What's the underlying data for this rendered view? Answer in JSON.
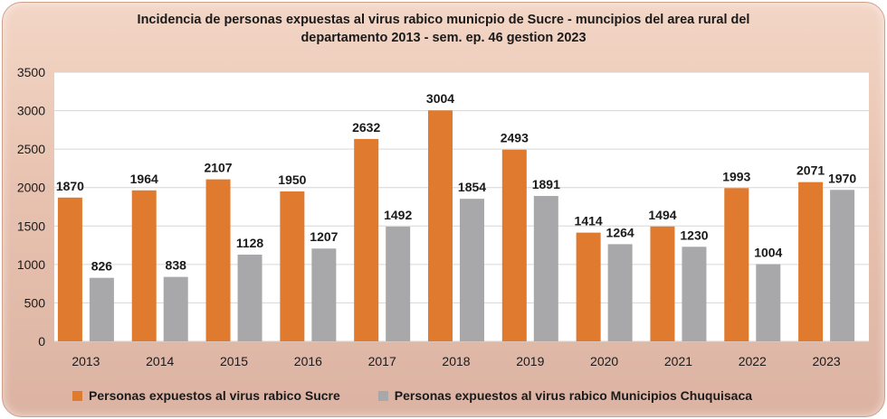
{
  "chart_data": {
    "type": "bar",
    "title_line1": "Incidencia de personas expuestas al virus rabico municpio de Sucre - muncipios del area rural del",
    "title_line2": "departamento 2013 - sem. ep. 46  gestion 2023",
    "categories": [
      "2013",
      "2014",
      "2015",
      "2016",
      "2017",
      "2018",
      "2019",
      "2020",
      "2021",
      "2022",
      "2023"
    ],
    "series": [
      {
        "name": "Personas expuestos al virus rabico Sucre",
        "color": "#e07a2e",
        "values": [
          1870,
          1964,
          2107,
          1950,
          2632,
          3004,
          2493,
          1414,
          1494,
          1993,
          2071
        ]
      },
      {
        "name": "Personas expuestos al virus rabico Municipios Chuquisaca",
        "color": "#a8a8aa",
        "values": [
          826,
          838,
          1128,
          1207,
          1492,
          1854,
          1891,
          1264,
          1230,
          1004,
          1970
        ]
      }
    ],
    "ylim": [
      0,
      3500
    ],
    "yticks": [
      0,
      500,
      1000,
      1500,
      2000,
      2500,
      3000,
      3500
    ],
    "grid": true,
    "legend_position": "bottom",
    "background": "#ffffff",
    "gridline_color": "#d6d6d6"
  }
}
